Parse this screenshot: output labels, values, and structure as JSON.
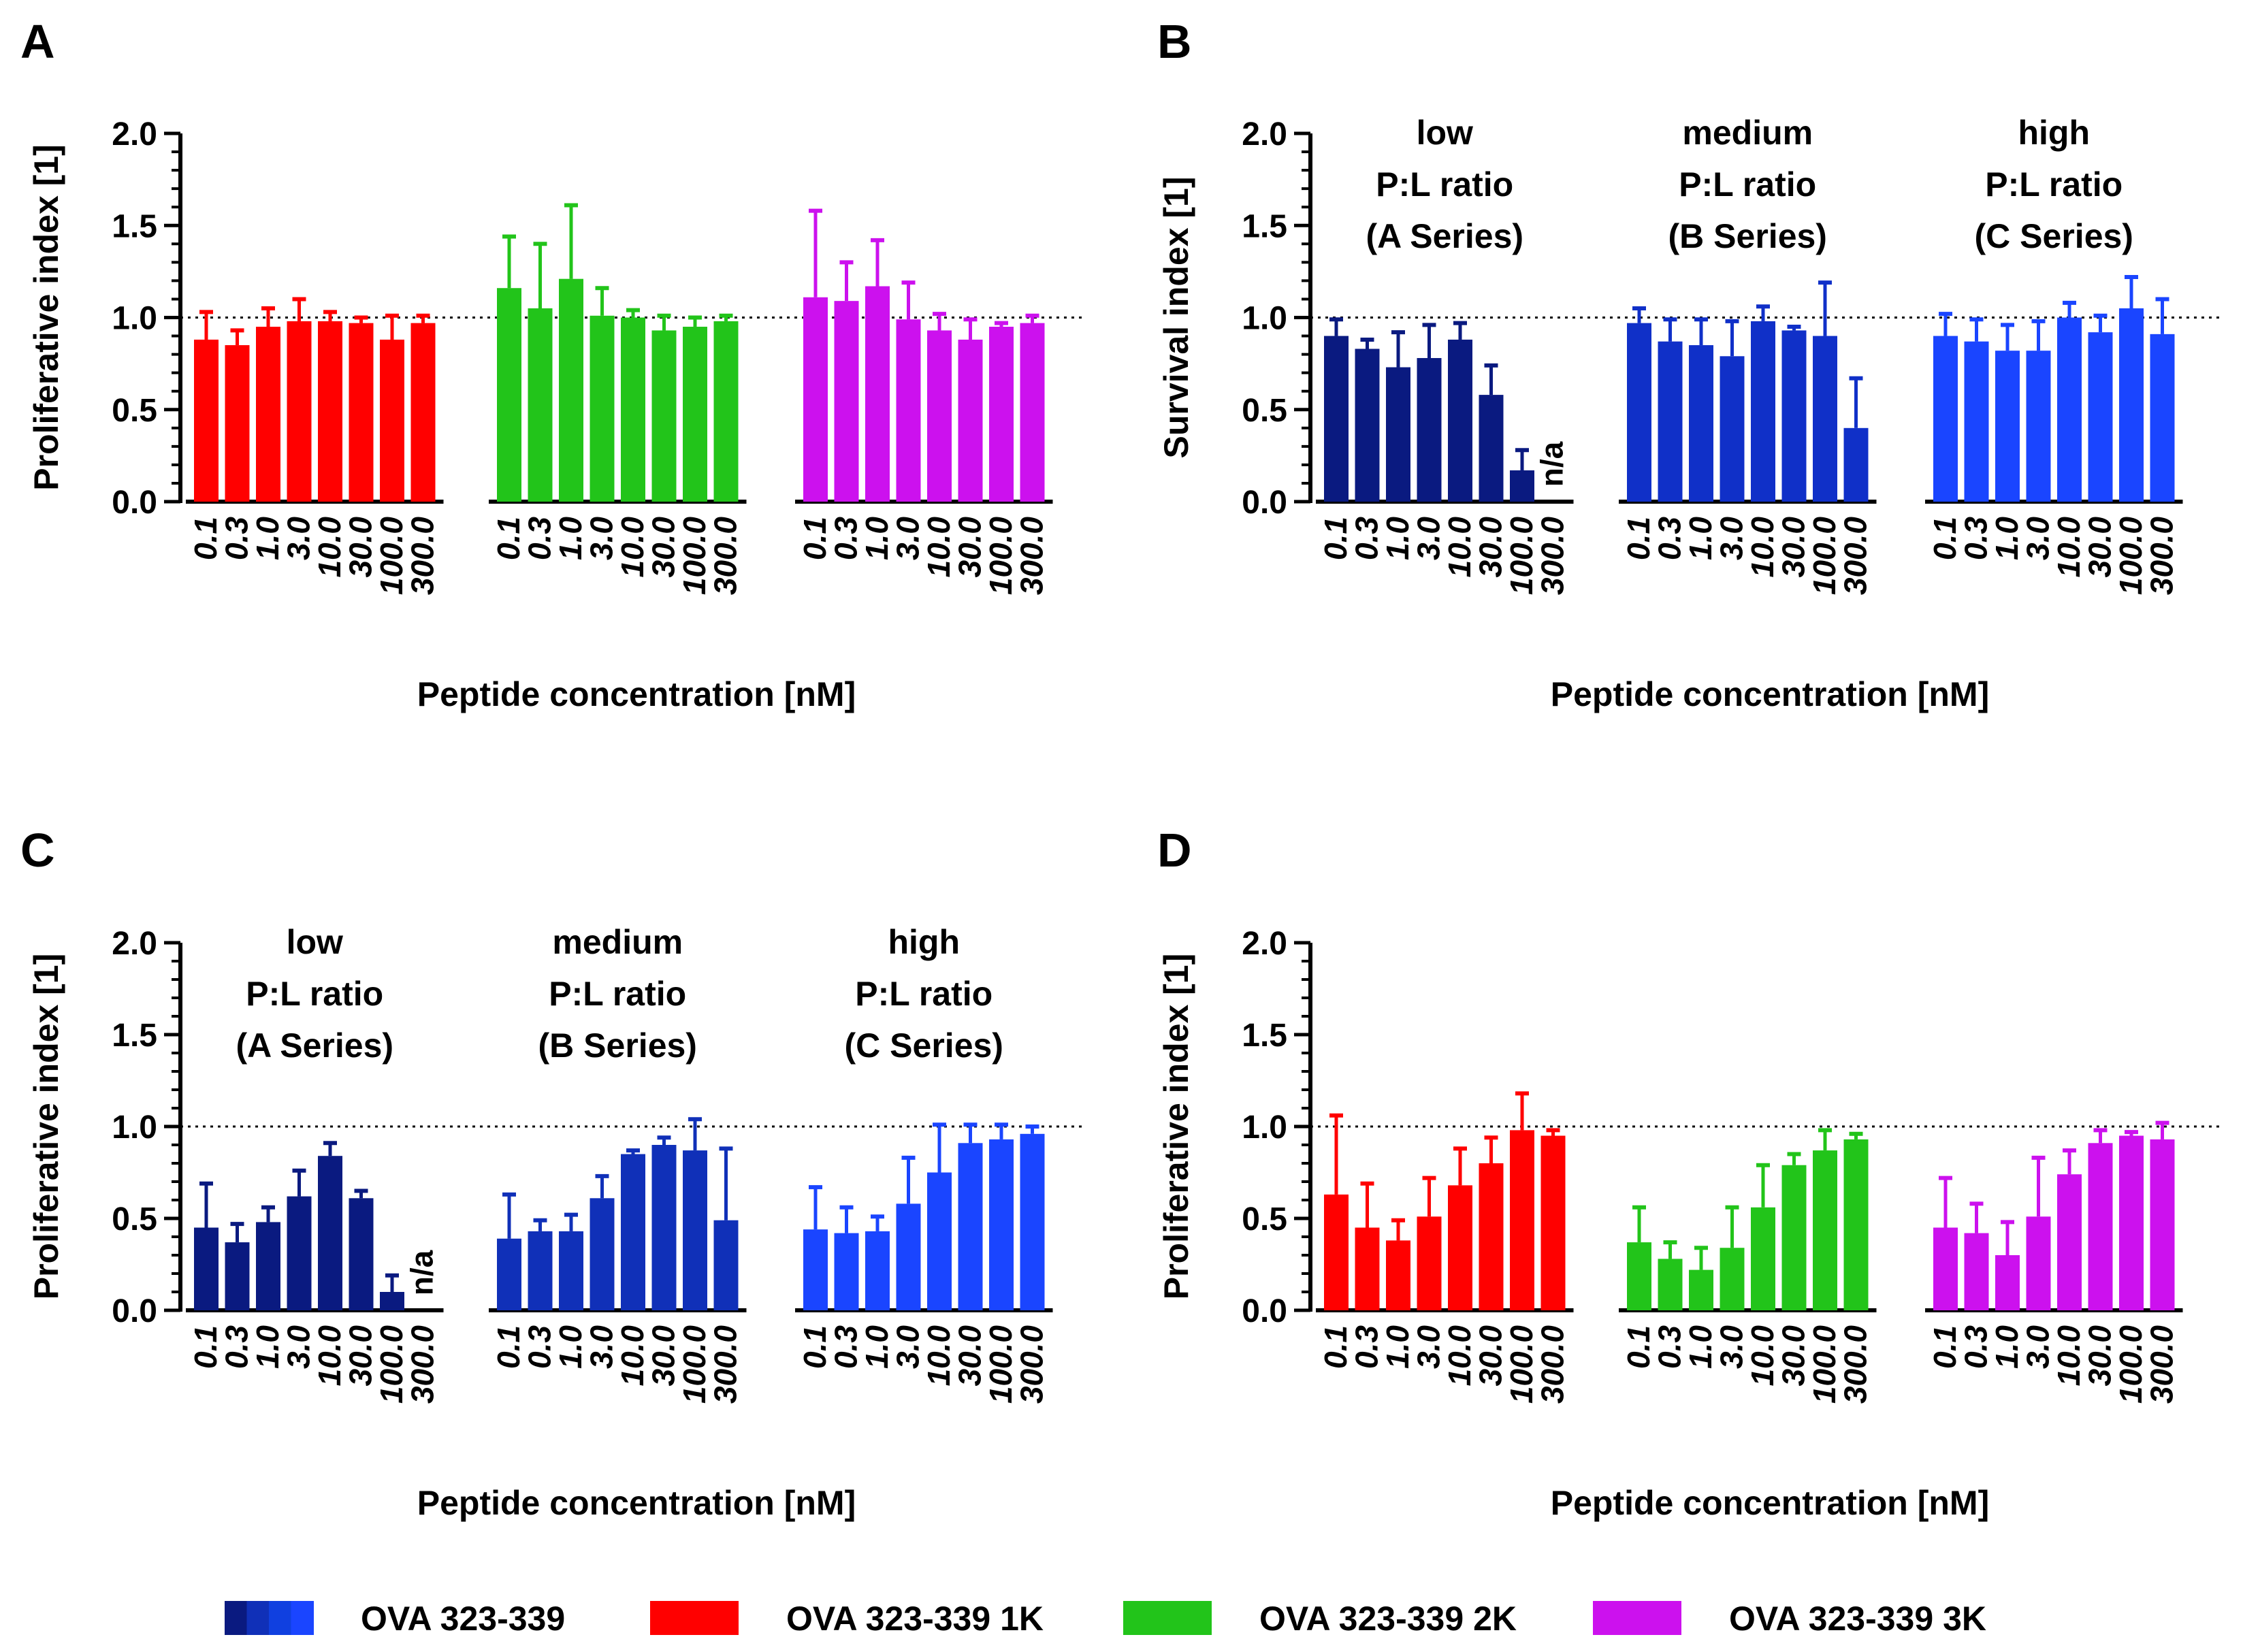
{
  "legend": [
    {
      "label": "OVA 323-339",
      "colors": [
        "#0a1a80",
        "#1030b8",
        "#1040e0",
        "#1a45ff"
      ]
    },
    {
      "label": "OVA 323-339 1K",
      "colors": [
        "#ff0000"
      ]
    },
    {
      "label": "OVA 323-339 2K",
      "colors": [
        "#22c41a"
      ]
    },
    {
      "label": "OVA 323-339 3K",
      "colors": [
        "#cc11ee"
      ]
    }
  ],
  "chart_data": [
    {
      "panel": "A",
      "type": "bar",
      "ylabel": "Proliferative index [1]",
      "xlabel": "Peptide concentration [nM]",
      "ylim": [
        0,
        2.0
      ],
      "yticks": [
        "0.0",
        "0.5",
        "1.0",
        "1.5",
        "2.0"
      ],
      "reference_line": 1.0,
      "categories": [
        "0.1",
        "0.3",
        "1.0",
        "3.0",
        "10.0",
        "30.0",
        "100.0",
        "300.0"
      ],
      "groups": [
        {
          "label": "",
          "series": "OVA 323-339 1K",
          "values": [
            0.88,
            0.85,
            0.95,
            0.98,
            0.98,
            0.97,
            0.88,
            0.97
          ],
          "errors": [
            0.15,
            0.08,
            0.1,
            0.12,
            0.05,
            0.03,
            0.13,
            0.04
          ],
          "colors": [
            "#ff0000",
            "#ff0000",
            "#ff0000",
            "#ff0000",
            "#ff0000",
            "#ff0000",
            "#ff0000",
            "#ff0000"
          ]
        },
        {
          "label": "",
          "series": "OVA 323-339 2K",
          "values": [
            1.16,
            1.05,
            1.21,
            1.01,
            1.0,
            0.93,
            0.95,
            0.98
          ],
          "errors": [
            0.28,
            0.35,
            0.4,
            0.15,
            0.04,
            0.08,
            0.05,
            0.03
          ],
          "colors": [
            "#22c41a",
            "#22c41a",
            "#22c41a",
            "#22c41a",
            "#22c41a",
            "#22c41a",
            "#22c41a",
            "#22c41a"
          ]
        },
        {
          "label": "",
          "series": "OVA 323-339 3K",
          "values": [
            1.11,
            1.09,
            1.17,
            0.99,
            0.93,
            0.88,
            0.95,
            0.97
          ],
          "errors": [
            0.47,
            0.21,
            0.25,
            0.2,
            0.09,
            0.11,
            0.02,
            0.04
          ],
          "colors": [
            "#cc11ee",
            "#cc11ee",
            "#cc11ee",
            "#cc11ee",
            "#cc11ee",
            "#cc11ee",
            "#cc11ee",
            "#cc11ee"
          ]
        }
      ]
    },
    {
      "panel": "B",
      "type": "bar",
      "ylabel": "Survival index [1]",
      "xlabel": "Peptide concentration [nM]",
      "ylim": [
        0,
        2.0
      ],
      "yticks": [
        "0.0",
        "0.5",
        "1.0",
        "1.5",
        "2.0"
      ],
      "reference_line": 1.0,
      "categories": [
        "0.1",
        "0.3",
        "1.0",
        "3.0",
        "10.0",
        "30.0",
        "100.0",
        "300.0"
      ],
      "groups": [
        {
          "label": [
            "low",
            "P:L ratio",
            "(A Series)"
          ],
          "series": "OVA 323-339",
          "values": [
            0.9,
            0.83,
            0.73,
            0.78,
            0.88,
            0.58,
            0.17,
            null
          ],
          "errors": [
            0.09,
            0.05,
            0.19,
            0.18,
            0.09,
            0.16,
            0.11,
            null
          ],
          "colors": [
            "#0a1a80",
            "#0a1a80",
            "#0a1a80",
            "#0a1a80",
            "#0a1a80",
            "#0a1a80",
            "#0a1a80",
            "#0a1a80"
          ],
          "na_label": "n/a"
        },
        {
          "label": [
            "medium",
            "P:L ratio",
            "(B Series)"
          ],
          "series": "OVA 323-339",
          "values": [
            0.97,
            0.87,
            0.85,
            0.79,
            0.98,
            0.93,
            0.9,
            0.4
          ],
          "errors": [
            0.08,
            0.12,
            0.14,
            0.19,
            0.08,
            0.02,
            0.29,
            0.27
          ],
          "colors": [
            "#1030c8",
            "#1030c8",
            "#1030c8",
            "#1030c8",
            "#1030c8",
            "#1030c8",
            "#1030c8",
            "#1030c8"
          ]
        },
        {
          "label": [
            "high",
            "P:L ratio",
            "(C Series)"
          ],
          "series": "OVA 323-339",
          "values": [
            0.9,
            0.87,
            0.82,
            0.82,
            1.0,
            0.92,
            1.05,
            0.91
          ],
          "errors": [
            0.12,
            0.12,
            0.14,
            0.16,
            0.08,
            0.09,
            0.17,
            0.19
          ],
          "colors": [
            "#1a45ff",
            "#1a45ff",
            "#1a45ff",
            "#1a45ff",
            "#1a45ff",
            "#1a45ff",
            "#1a45ff",
            "#1a45ff"
          ]
        }
      ]
    },
    {
      "panel": "C",
      "type": "bar",
      "ylabel": "Proliferative index [1]",
      "xlabel": "Peptide concentration [nM]",
      "ylim": [
        0,
        2.0
      ],
      "yticks": [
        "0.0",
        "0.5",
        "1.0",
        "1.5",
        "2.0"
      ],
      "reference_line": 1.0,
      "categories": [
        "0.1",
        "0.3",
        "1.0",
        "3.0",
        "10.0",
        "30.0",
        "100.0",
        "300.0"
      ],
      "groups": [
        {
          "label": [
            "low",
            "P:L ratio",
            "(A Series)"
          ],
          "series": "OVA 323-339",
          "values": [
            0.45,
            0.37,
            0.48,
            0.62,
            0.84,
            0.61,
            0.1,
            null
          ],
          "errors": [
            0.24,
            0.1,
            0.08,
            0.14,
            0.07,
            0.04,
            0.09,
            null
          ],
          "colors": [
            "#0a1a80",
            "#0a1a80",
            "#0a1a80",
            "#0a1a80",
            "#0a1a80",
            "#0a1a80",
            "#0a1a80",
            "#0a1a80"
          ],
          "na_label": "n/a"
        },
        {
          "label": [
            "medium",
            "P:L ratio",
            "(B Series)"
          ],
          "series": "OVA 323-339",
          "values": [
            0.39,
            0.43,
            0.43,
            0.61,
            0.85,
            0.9,
            0.87,
            0.49
          ],
          "errors": [
            0.24,
            0.06,
            0.09,
            0.12,
            0.02,
            0.04,
            0.17,
            0.39
          ],
          "colors": [
            "#1030b8",
            "#1030b8",
            "#1030b8",
            "#1030b8",
            "#1030b8",
            "#1030b8",
            "#1030b8",
            "#1030b8"
          ]
        },
        {
          "label": [
            "high",
            "P:L ratio",
            "(C Series)"
          ],
          "series": "OVA 323-339",
          "values": [
            0.44,
            0.42,
            0.43,
            0.58,
            0.75,
            0.91,
            0.93,
            0.96
          ],
          "errors": [
            0.23,
            0.14,
            0.08,
            0.25,
            0.26,
            0.1,
            0.08,
            0.04
          ],
          "colors": [
            "#1a45ff",
            "#1a45ff",
            "#1a45ff",
            "#1a45ff",
            "#1a45ff",
            "#1a45ff",
            "#1a45ff",
            "#1a45ff"
          ]
        }
      ]
    },
    {
      "panel": "D",
      "type": "bar",
      "ylabel": "Proliferative index [1]",
      "xlabel": "Peptide concentration [nM]",
      "ylim": [
        0,
        2.0
      ],
      "yticks": [
        "0.0",
        "0.5",
        "1.0",
        "1.5",
        "2.0"
      ],
      "reference_line": 1.0,
      "categories": [
        "0.1",
        "0.3",
        "1.0",
        "3.0",
        "10.0",
        "30.0",
        "100.0",
        "300.0"
      ],
      "groups": [
        {
          "label": "",
          "series": "OVA 323-339 1K",
          "values": [
            0.63,
            0.45,
            0.38,
            0.51,
            0.68,
            0.8,
            0.98,
            0.95
          ],
          "errors": [
            0.43,
            0.24,
            0.11,
            0.21,
            0.2,
            0.14,
            0.2,
            0.03
          ],
          "colors": [
            "#ff0000",
            "#ff0000",
            "#ff0000",
            "#ff0000",
            "#ff0000",
            "#ff0000",
            "#ff0000",
            "#ff0000"
          ]
        },
        {
          "label": "",
          "series": "OVA 323-339 2K",
          "values": [
            0.37,
            0.28,
            0.22,
            0.34,
            0.56,
            0.79,
            0.87,
            0.93
          ],
          "errors": [
            0.19,
            0.09,
            0.12,
            0.22,
            0.23,
            0.06,
            0.11,
            0.03
          ],
          "colors": [
            "#22c41a",
            "#22c41a",
            "#22c41a",
            "#22c41a",
            "#22c41a",
            "#22c41a",
            "#22c41a",
            "#22c41a"
          ]
        },
        {
          "label": "",
          "series": "OVA 323-339 3K",
          "values": [
            0.45,
            0.42,
            0.3,
            0.51,
            0.74,
            0.91,
            0.95,
            0.93
          ],
          "errors": [
            0.27,
            0.16,
            0.18,
            0.32,
            0.13,
            0.07,
            0.02,
            0.09
          ],
          "colors": [
            "#cc11ee",
            "#cc11ee",
            "#cc11ee",
            "#cc11ee",
            "#cc11ee",
            "#cc11ee",
            "#cc11ee",
            "#cc11ee"
          ]
        }
      ]
    }
  ]
}
